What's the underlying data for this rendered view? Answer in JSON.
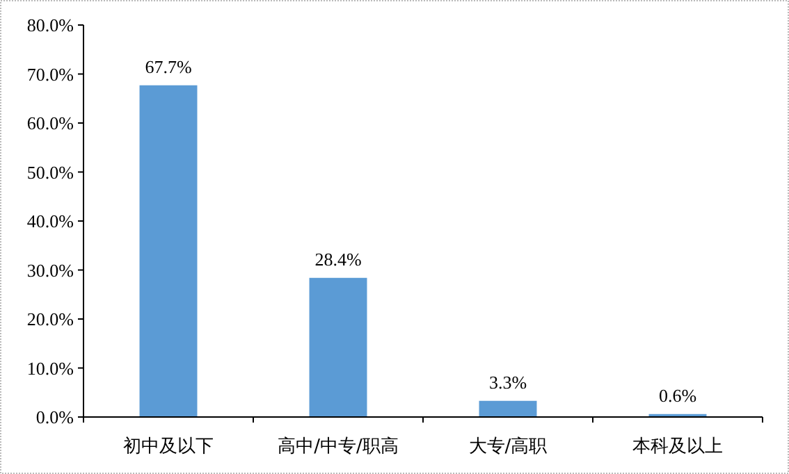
{
  "chart_data": {
    "type": "bar",
    "categories": [
      "初中及以下",
      "高中/中专/职高",
      "大专/高职",
      "本科及以上"
    ],
    "values": [
      67.7,
      28.4,
      3.3,
      0.6
    ],
    "color": "#5b9bd5",
    "value_labels": [
      "67.7%",
      "28.4%",
      "3.3%",
      "0.6%"
    ],
    "ylim": [
      0,
      80
    ],
    "yticks": [
      {
        "value": 0,
        "label": "0.0%"
      },
      {
        "value": 10,
        "label": "10.0%"
      },
      {
        "value": 20,
        "label": "20.0%"
      },
      {
        "value": 30,
        "label": "30.0%"
      },
      {
        "value": 40,
        "label": "40.0%"
      },
      {
        "value": 50,
        "label": "50.0%"
      },
      {
        "value": 60,
        "label": "60.0%"
      },
      {
        "value": 70,
        "label": "70.0%"
      },
      {
        "value": 80,
        "label": "80.0%"
      }
    ]
  }
}
